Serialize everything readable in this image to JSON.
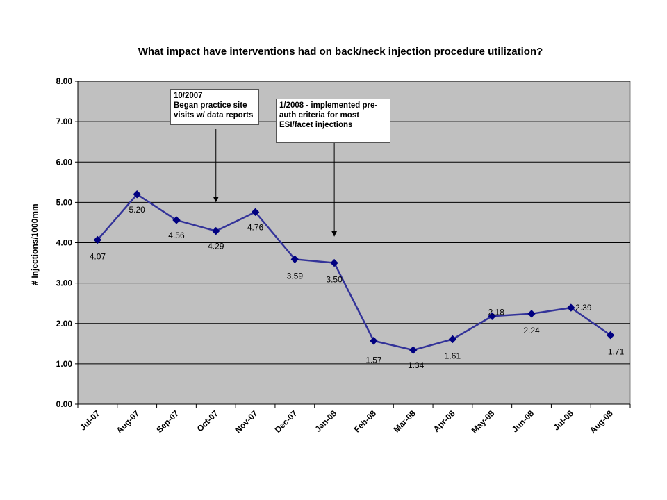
{
  "chart_data": {
    "type": "line",
    "title": "What impact have interventions had on back/neck injection procedure utilization?",
    "xlabel": "",
    "ylabel": "# Injections/1000mm",
    "ylim": [
      0,
      8
    ],
    "yticks": [
      "0.00",
      "1.00",
      "2.00",
      "3.00",
      "4.00",
      "5.00",
      "6.00",
      "7.00",
      "8.00"
    ],
    "categories": [
      "Jul-07",
      "Aug-07",
      "Sep-07",
      "Oct-07",
      "Nov-07",
      "Dec-07",
      "Jan-08",
      "Feb-08",
      "Mar-08",
      "Apr-08",
      "May-08",
      "Jun-08",
      "Jul-08",
      "Aug-08"
    ],
    "series": [
      {
        "values": [
          4.07,
          5.2,
          4.56,
          4.29,
          4.76,
          3.59,
          3.5,
          1.57,
          1.34,
          1.61,
          2.18,
          2.24,
          2.39,
          1.71
        ],
        "labels": [
          "4.07",
          "5.20",
          "4.56",
          "4.29",
          "4.76",
          "3.59",
          "3.50",
          "1.57",
          "1.34",
          "1.61",
          "2.18",
          "2.24",
          "2.39",
          "1.71"
        ],
        "color": "#333399"
      }
    ],
    "grid": true,
    "plot_background": "#c0c0c0",
    "annotations": [
      {
        "text": "10/2007\nBegan practice site\nvisits w/ data reports",
        "category": "Oct-07",
        "arrow_to_value": 5.0
      },
      {
        "text": "1/2008 - implemented pre-\nauth criteria for most\nESI/facet injections",
        "category": "Jan-08",
        "arrow_to_value": 4.15
      }
    ]
  }
}
